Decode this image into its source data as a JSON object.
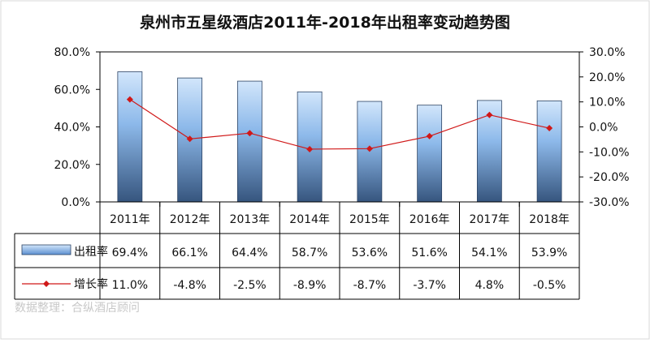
{
  "chart_data": {
    "type": "bar",
    "title": "泉州市五星级酒店2011年-2018年出租率变动趋势图",
    "categories": [
      "2011年",
      "2012年",
      "2013年",
      "2014年",
      "2015年",
      "2016年",
      "2017年",
      "2018年"
    ],
    "series": [
      {
        "name": "出租率",
        "type": "bar",
        "axis": "left",
        "values": [
          69.4,
          66.1,
          64.4,
          58.7,
          53.6,
          51.6,
          54.1,
          53.9
        ],
        "labels": [
          "69.4%",
          "66.1%",
          "64.4%",
          "58.7%",
          "53.6%",
          "51.6%",
          "54.1%",
          "53.9%"
        ],
        "color": "#5b8fd0"
      },
      {
        "name": "增长率",
        "type": "line",
        "axis": "right",
        "values": [
          11.0,
          -4.8,
          -2.5,
          -8.9,
          -8.7,
          -3.7,
          4.8,
          -0.5
        ],
        "labels": [
          "11.0%",
          "-4.8%",
          "-2.5%",
          "-8.9%",
          "-8.7%",
          "-3.7%",
          "4.8%",
          "-0.5%"
        ],
        "color": "#d01818"
      }
    ],
    "y_left": {
      "ylim": [
        0,
        80
      ],
      "ticks": [
        "80.0%",
        "60.0%",
        "40.0%",
        "20.0%",
        "0.0%"
      ]
    },
    "y_right": {
      "ylim": [
        -30,
        30
      ],
      "ticks": [
        "30.0%",
        "20.0%",
        "10.0%",
        "0.0%",
        "-10.0%",
        "-20.0%",
        "-30.0%"
      ]
    },
    "grid": false,
    "legend": "data-table",
    "data_table": true
  },
  "source_note": "数据整理：合纵酒店顾问"
}
